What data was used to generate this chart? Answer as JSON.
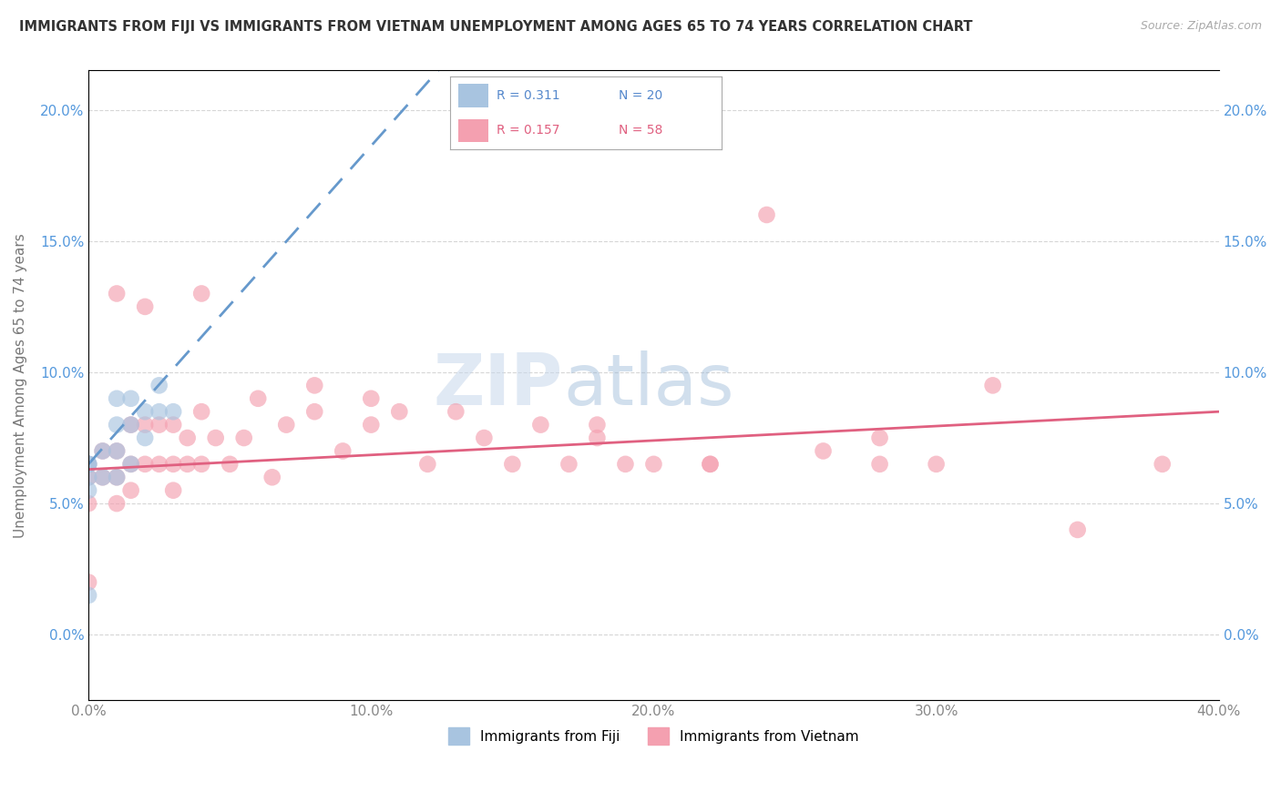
{
  "title": "IMMIGRANTS FROM FIJI VS IMMIGRANTS FROM VIETNAM UNEMPLOYMENT AMONG AGES 65 TO 74 YEARS CORRELATION CHART",
  "source": "Source: ZipAtlas.com",
  "xlabel": "",
  "ylabel": "Unemployment Among Ages 65 to 74 years",
  "xlim": [
    0.0,
    0.4
  ],
  "ylim": [
    -0.025,
    0.215
  ],
  "xticks": [
    0.0,
    0.1,
    0.2,
    0.3,
    0.4
  ],
  "xticklabels": [
    "0.0%",
    "10.0%",
    "20.0%",
    "30.0%",
    "40.0%"
  ],
  "yticks": [
    0.0,
    0.05,
    0.1,
    0.15,
    0.2
  ],
  "yticklabels": [
    "0.0%",
    "5.0%",
    "10.0%",
    "15.0%",
    "20.0%"
  ],
  "fiji_color": "#a8c4e0",
  "vietnam_color": "#f4a0b0",
  "fiji_line_color": "#6699cc",
  "vietnam_line_color": "#e06080",
  "legend_fiji_r": "R = 0.311",
  "legend_fiji_n": "N = 20",
  "legend_vietnam_r": "R = 0.157",
  "legend_vietnam_n": "N = 58",
  "fiji_x": [
    0.0,
    0.0,
    0.0,
    0.0,
    0.005,
    0.005,
    0.01,
    0.01,
    0.01,
    0.01,
    0.015,
    0.015,
    0.015,
    0.02,
    0.02,
    0.025,
    0.025,
    0.03,
    0.0,
    0.0
  ],
  "fiji_y": [
    0.065,
    0.06,
    0.055,
    0.015,
    0.07,
    0.06,
    0.09,
    0.08,
    0.07,
    0.06,
    0.09,
    0.08,
    0.065,
    0.085,
    0.075,
    0.095,
    0.085,
    0.085,
    0.065,
    0.065
  ],
  "vietnam_x": [
    0.0,
    0.0,
    0.0,
    0.0,
    0.005,
    0.005,
    0.01,
    0.01,
    0.01,
    0.015,
    0.015,
    0.015,
    0.02,
    0.02,
    0.025,
    0.025,
    0.03,
    0.03,
    0.03,
    0.035,
    0.035,
    0.04,
    0.04,
    0.045,
    0.05,
    0.055,
    0.06,
    0.065,
    0.07,
    0.08,
    0.09,
    0.1,
    0.11,
    0.12,
    0.13,
    0.14,
    0.15,
    0.16,
    0.17,
    0.18,
    0.19,
    0.2,
    0.22,
    0.24,
    0.26,
    0.28,
    0.3,
    0.32,
    0.35,
    0.38,
    0.01,
    0.02,
    0.04,
    0.08,
    0.1,
    0.18,
    0.22,
    0.28
  ],
  "vietnam_y": [
    0.065,
    0.06,
    0.05,
    0.02,
    0.07,
    0.06,
    0.07,
    0.06,
    0.05,
    0.08,
    0.065,
    0.055,
    0.08,
    0.065,
    0.08,
    0.065,
    0.08,
    0.065,
    0.055,
    0.075,
    0.065,
    0.085,
    0.065,
    0.075,
    0.065,
    0.075,
    0.09,
    0.06,
    0.08,
    0.085,
    0.07,
    0.08,
    0.085,
    0.065,
    0.085,
    0.075,
    0.065,
    0.08,
    0.065,
    0.075,
    0.065,
    0.065,
    0.065,
    0.16,
    0.07,
    0.065,
    0.065,
    0.095,
    0.04,
    0.065,
    0.13,
    0.125,
    0.13,
    0.095,
    0.09,
    0.08,
    0.065,
    0.075
  ],
  "watermark_zip": "ZIP",
  "watermark_atlas": "atlas",
  "background_color": "#ffffff",
  "grid_color": "#cccccc",
  "fiji_regression": [
    0.0,
    0.4,
    0.065,
    0.55
  ],
  "vietnam_regression": [
    0.0,
    0.4,
    0.063,
    0.085
  ]
}
